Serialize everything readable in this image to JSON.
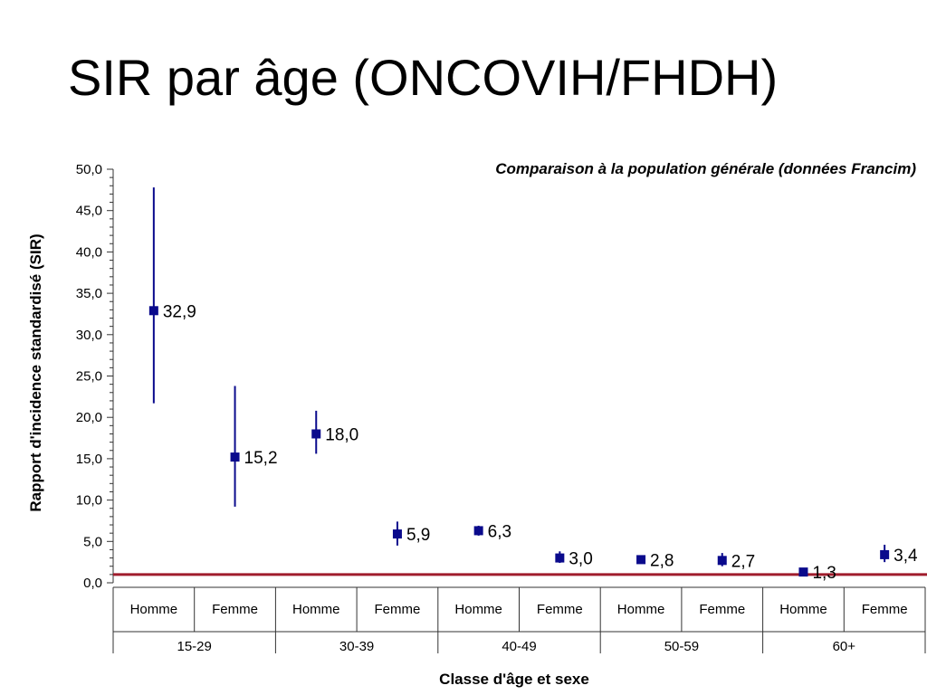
{
  "slide": {
    "title": "SIR par âge (ONCOVIH/FHDH)"
  },
  "chart_data": {
    "type": "scatter",
    "subtitle": "Comparaison à la population générale (données Francim)",
    "ylabel": "Rapport d'incidence standardisé (SIR)",
    "xlabel": "Classe d'âge et sexe",
    "ylim": [
      0,
      50
    ],
    "yticks": [
      "0,0",
      "5,0",
      "10,0",
      "15,0",
      "20,0",
      "25,0",
      "30,0",
      "35,0",
      "40,0",
      "45,0",
      "50,0"
    ],
    "reference_line": 1,
    "colors": {
      "marker": "#0a0a8c",
      "reference": "#a01c2c",
      "axis": "#333333"
    },
    "groups": [
      {
        "label": "15-29",
        "items": [
          {
            "sex": "Homme",
            "value": 32.9,
            "label": "32,9",
            "low": 21.7,
            "high": 47.8
          },
          {
            "sex": "Femme",
            "value": 15.2,
            "label": "15,2",
            "low": 9.2,
            "high": 23.8
          }
        ]
      },
      {
        "label": "30-39",
        "items": [
          {
            "sex": "Homme",
            "value": 18.0,
            "label": "18,0",
            "low": 15.6,
            "high": 20.8
          },
          {
            "sex": "Femme",
            "value": 5.9,
            "label": "5,9",
            "low": 4.5,
            "high": 7.4
          }
        ]
      },
      {
        "label": "40-49",
        "items": [
          {
            "sex": "Homme",
            "value": 6.3,
            "label": "6,3",
            "low": 5.7,
            "high": 6.9
          },
          {
            "sex": "Femme",
            "value": 3.0,
            "label": "3,0",
            "low": 2.4,
            "high": 3.8
          }
        ]
      },
      {
        "label": "50-59",
        "items": [
          {
            "sex": "Homme",
            "value": 2.8,
            "label": "2,8",
            "low": 2.5,
            "high": 3.1
          },
          {
            "sex": "Femme",
            "value": 2.7,
            "label": "2,7",
            "low": 2.0,
            "high": 3.6
          }
        ]
      },
      {
        "label": "60+",
        "items": [
          {
            "sex": "Homme",
            "value": 1.3,
            "label": "1,3",
            "low": 1.1,
            "high": 1.5
          },
          {
            "sex": "Femme",
            "value": 3.4,
            "label": "3,4",
            "low": 2.5,
            "high": 4.6
          }
        ]
      }
    ]
  }
}
